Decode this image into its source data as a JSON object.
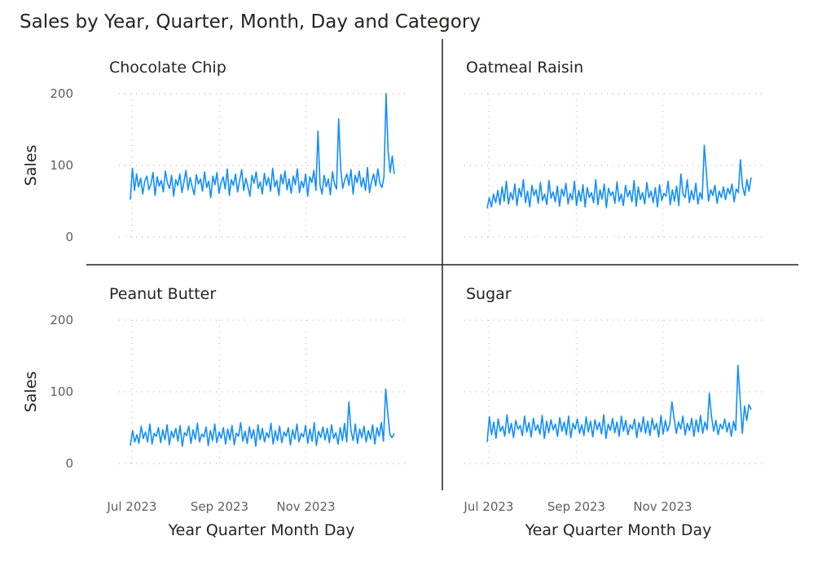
{
  "chart_data": {
    "type": "line",
    "title": "Sales by Year, Quarter, Month, Day and Category",
    "layout": "small-multiples-2x2",
    "xlabel": "Year Quarter Month Day",
    "ylabel": "Sales",
    "x_tick_labels": [
      "Jul 2023",
      "Sep 2023",
      "Nov 2023"
    ],
    "y_ticks": [
      0,
      100,
      200
    ],
    "ylim": [
      0,
      200
    ],
    "grid": true,
    "line_color": "#118DFF",
    "x_start": "2023-07-01",
    "x_end": "2023-12-31",
    "panels": [
      {
        "name": "Chocolate Chip",
        "values": [
          52,
          96,
          65,
          88,
          70,
          82,
          60,
          78,
          85,
          66,
          74,
          90,
          58,
          84,
          71,
          79,
          63,
          92,
          75,
          68,
          86,
          57,
          80,
          72,
          88,
          62,
          77,
          93,
          66,
          83,
          70,
          59,
          87,
          74,
          81,
          64,
          91,
          69,
          78,
          55,
          85,
          73,
          90,
          61,
          76,
          84,
          67,
          95,
          58,
          80,
          72,
          88,
          63,
          79,
          94,
          65,
          82,
          70,
          57,
          86,
          75,
          91,
          68,
          77,
          60,
          89,
          72,
          83,
          64,
          96,
          70,
          79,
          58,
          87,
          74,
          92,
          66,
          81,
          61,
          85,
          73,
          95,
          62,
          78,
          69,
          88,
          57,
          84,
          76,
          93,
          65,
          148,
          72,
          60,
          86,
          70,
          81,
          59,
          91,
          74,
          67,
          165,
          95,
          68,
          80,
          88,
          72,
          94,
          60,
          86,
          76,
          92,
          70,
          83,
          65,
          97,
          62,
          78,
          88,
          71,
          95,
          75,
          69,
          84,
          200,
          120,
          90,
          113,
          88
        ]
      },
      {
        "name": "Oatmeal Raisin",
        "values": [
          40,
          55,
          42,
          60,
          48,
          65,
          45,
          70,
          50,
          78,
          46,
          62,
          52,
          74,
          44,
          68,
          56,
          80,
          48,
          64,
          42,
          72,
          58,
          66,
          47,
          76,
          51,
          60,
          45,
          79,
          54,
          63,
          49,
          71,
          43,
          67,
          57,
          75,
          46,
          61,
          52,
          78,
          44,
          65,
          50,
          73,
          42,
          69,
          55,
          62,
          48,
          80,
          45,
          66,
          53,
          74,
          41,
          68,
          58,
          63,
          47,
          77,
          50,
          60,
          44,
          72,
          56,
          65,
          49,
          79,
          43,
          70,
          52,
          62,
          46,
          76,
          55,
          64,
          48,
          69,
          42,
          73,
          51,
          61,
          57,
          78,
          45,
          66,
          50,
          71,
          44,
          88,
          60,
          55,
          80,
          48,
          65,
          52,
          75,
          46,
          62,
          53,
          128,
          90,
          50,
          66,
          58,
          72,
          47,
          64,
          55,
          70,
          52,
          68,
          60,
          74,
          49,
          67,
          62,
          108,
          70,
          58,
          80,
          64,
          83
        ]
      },
      {
        "name": "Peanut Butter",
        "values": [
          25,
          46,
          30,
          40,
          28,
          52,
          35,
          44,
          30,
          55,
          27,
          42,
          38,
          50,
          29,
          47,
          33,
          54,
          26,
          45,
          36,
          49,
          31,
          53,
          24,
          43,
          39,
          52,
          28,
          47,
          34,
          56,
          30,
          41,
          37,
          51,
          25,
          46,
          32,
          55,
          29,
          44,
          35,
          50,
          27,
          48,
          33,
          53,
          26,
          42,
          38,
          57,
          31,
          45,
          28,
          51,
          35,
          47,
          24,
          54,
          33,
          49,
          30,
          43,
          36,
          56,
          27,
          46,
          32,
          52,
          29,
          44,
          38,
          50,
          26,
          47,
          34,
          55,
          30,
          42,
          37,
          53,
          28,
          48,
          31,
          57,
          25,
          45,
          36,
          51,
          33,
          49,
          29,
          54,
          35,
          43,
          27,
          50,
          32,
          56,
          30,
          86,
          45,
          32,
          55,
          28,
          48,
          36,
          52,
          30,
          46,
          34,
          54,
          27,
          50,
          38,
          57,
          31,
          104,
          70,
          40,
          36,
          42
        ]
      },
      {
        "name": "Sugar",
        "values": [
          30,
          65,
          40,
          58,
          35,
          62,
          45,
          52,
          38,
          68,
          42,
          56,
          36,
          60,
          48,
          53,
          39,
          66,
          44,
          57,
          37,
          63,
          46,
          54,
          41,
          67,
          35,
          59,
          43,
          61,
          47,
          55,
          38,
          64,
          45,
          58,
          40,
          66,
          36,
          56,
          48,
          62,
          42,
          54,
          39,
          65,
          44,
          59,
          37,
          61,
          47,
          57,
          41,
          68,
          35,
          55,
          46,
          63,
          43,
          58,
          38,
          66,
          45,
          60,
          40,
          54,
          48,
          62,
          36,
          57,
          44,
          65,
          42,
          59,
          39,
          63,
          47,
          56,
          37,
          67,
          41,
          60,
          45,
          55,
          86,
          62,
          42,
          58,
          48,
          66,
          40,
          56,
          46,
          63,
          38,
          61,
          44,
          67,
          42,
          58,
          47,
          98,
          65,
          45,
          60,
          40,
          55,
          48,
          62,
          44,
          57,
          38,
          59,
          46,
          137,
          90,
          42,
          80,
          60,
          82,
          75
        ]
      }
    ]
  }
}
